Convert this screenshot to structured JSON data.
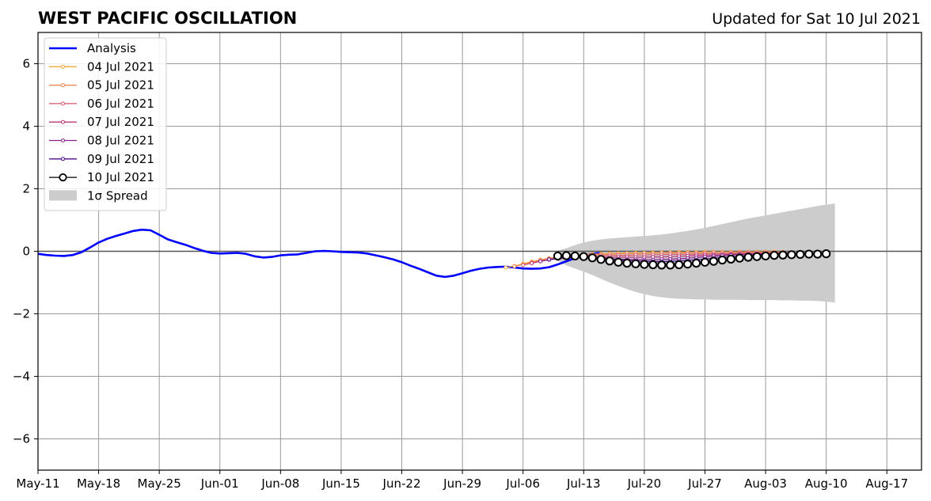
{
  "colors": {
    "analysis": "#0000ff",
    "spread": "#cccccc",
    "grid": "#999999",
    "zero_line": "#555555",
    "forecasts": {
      "04 Jul 2021": "#f6a93b",
      "05 Jul 2021": "#ef8249",
      "06 Jul 2021": "#d8566b",
      "07 Jul 2021": "#b73779",
      "08 Jul 2021": "#8a1f8e",
      "09 Jul 2021": "#4b0c8c",
      "10 Jul 2021": "#000000"
    }
  },
  "chart_data": {
    "type": "line",
    "title": "WEST PACIFIC OSCILLATION",
    "subtitle": "Updated for Sat 10 Jul 2021",
    "xlabel": "",
    "ylabel": "",
    "xlim": [
      "2021-05-11",
      "2021-08-21"
    ],
    "ylim": [
      -7,
      7
    ],
    "y_ticks": [
      -6,
      -4,
      -2,
      0,
      2,
      4,
      6
    ],
    "y_tick_labels": [
      "−6",
      "−4",
      "−2",
      "0",
      "2",
      "4",
      "6"
    ],
    "x_ticks": [
      {
        "date": "2021-05-11",
        "label": "May-11"
      },
      {
        "date": "2021-05-18",
        "label": "May-18"
      },
      {
        "date": "2021-05-25",
        "label": "May-25"
      },
      {
        "date": "2021-06-01",
        "label": "Jun-01"
      },
      {
        "date": "2021-06-08",
        "label": "Jun-08"
      },
      {
        "date": "2021-06-15",
        "label": "Jun-15"
      },
      {
        "date": "2021-06-22",
        "label": "Jun-22"
      },
      {
        "date": "2021-06-29",
        "label": "Jun-29"
      },
      {
        "date": "2021-07-06",
        "label": "Jul-06"
      },
      {
        "date": "2021-07-13",
        "label": "Jul-13"
      },
      {
        "date": "2021-07-20",
        "label": "Jul-20"
      },
      {
        "date": "2021-07-27",
        "label": "Jul-27"
      },
      {
        "date": "2021-08-03",
        "label": "Aug-03"
      },
      {
        "date": "2021-08-10",
        "label": "Aug-10"
      },
      {
        "date": "2021-08-17",
        "label": "Aug-17"
      }
    ],
    "grid": true,
    "legend_position": "top-left",
    "legend": [
      "Analysis",
      "04 Jul 2021",
      "05 Jul 2021",
      "06 Jul 2021",
      "07 Jul 2021",
      "08 Jul 2021",
      "09 Jul 2021",
      "10 Jul 2021",
      "1σ Spread"
    ],
    "analysis": {
      "name": "Analysis",
      "start_date": "2021-05-11",
      "values": [
        -0.08,
        -0.12,
        -0.14,
        -0.15,
        -0.12,
        -0.03,
        0.12,
        0.28,
        0.4,
        0.49,
        0.57,
        0.65,
        0.69,
        0.67,
        0.53,
        0.38,
        0.29,
        0.21,
        0.11,
        0.02,
        -0.05,
        -0.07,
        -0.06,
        -0.05,
        -0.08,
        -0.16,
        -0.2,
        -0.18,
        -0.13,
        -0.11,
        -0.1,
        -0.05,
        0.0,
        0.01,
        0.0,
        -0.02,
        -0.03,
        -0.04,
        -0.07,
        -0.13,
        -0.19,
        -0.26,
        -0.35,
        -0.46,
        -0.56,
        -0.67,
        -0.78,
        -0.82,
        -0.78,
        -0.7,
        -0.62,
        -0.56,
        -0.52,
        -0.5,
        -0.49,
        -0.52,
        -0.55,
        -0.56,
        -0.55,
        -0.51,
        -0.42,
        -0.32,
        -0.22,
        -0.14,
        -0.08,
        -0.05
      ]
    },
    "forecasts": [
      {
        "name": "04 Jul 2021",
        "start_date": "2021-07-04",
        "values": [
          -0.52,
          -0.47,
          -0.4,
          -0.33,
          -0.27,
          -0.22,
          -0.18,
          -0.15,
          -0.12,
          -0.1,
          -0.09,
          -0.08,
          -0.07,
          -0.06,
          -0.06,
          -0.05,
          -0.05,
          -0.04,
          -0.04,
          -0.04,
          -0.03,
          -0.03,
          -0.03,
          -0.02,
          -0.02,
          -0.02,
          -0.02,
          -0.02,
          -0.02,
          -0.02,
          -0.02,
          -0.01
        ]
      },
      {
        "name": "05 Jul 2021",
        "start_date": "2021-07-05",
        "values": [
          -0.48,
          -0.42,
          -0.35,
          -0.28,
          -0.23,
          -0.19,
          -0.16,
          -0.14,
          -0.12,
          -0.11,
          -0.1,
          -0.09,
          -0.08,
          -0.07,
          -0.07,
          -0.06,
          -0.06,
          -0.05,
          -0.05,
          -0.05,
          -0.04,
          -0.04,
          -0.04,
          -0.03,
          -0.03,
          -0.03,
          -0.03,
          -0.02,
          -0.02,
          -0.02,
          -0.02,
          -0.02
        ]
      },
      {
        "name": "06 Jul 2021",
        "start_date": "2021-07-06",
        "values": [
          -0.44,
          -0.38,
          -0.32,
          -0.26,
          -0.22,
          -0.19,
          -0.17,
          -0.16,
          -0.15,
          -0.14,
          -0.14,
          -0.13,
          -0.13,
          -0.12,
          -0.12,
          -0.11,
          -0.11,
          -0.1,
          -0.1,
          -0.09,
          -0.09,
          -0.08,
          -0.08,
          -0.07,
          -0.07,
          -0.06,
          -0.06,
          -0.06,
          -0.05,
          -0.05,
          -0.05,
          -0.04
        ]
      },
      {
        "name": "07 Jul 2021",
        "start_date": "2021-07-07",
        "values": [
          -0.38,
          -0.32,
          -0.27,
          -0.23,
          -0.21,
          -0.2,
          -0.19,
          -0.19,
          -0.19,
          -0.19,
          -0.19,
          -0.19,
          -0.19,
          -0.19,
          -0.18,
          -0.18,
          -0.17,
          -0.16,
          -0.15,
          -0.14,
          -0.13,
          -0.12,
          -0.11,
          -0.1,
          -0.09,
          -0.08,
          -0.08,
          -0.07,
          -0.07,
          -0.06,
          -0.06,
          -0.05
        ]
      },
      {
        "name": "08 Jul 2021",
        "start_date": "2021-07-08",
        "values": [
          -0.32,
          -0.27,
          -0.24,
          -0.22,
          -0.21,
          -0.21,
          -0.22,
          -0.23,
          -0.24,
          -0.25,
          -0.26,
          -0.26,
          -0.27,
          -0.27,
          -0.26,
          -0.25,
          -0.24,
          -0.22,
          -0.2,
          -0.18,
          -0.16,
          -0.14,
          -0.12,
          -0.11,
          -0.1,
          -0.09,
          -0.08,
          -0.07,
          -0.06,
          -0.06,
          -0.05,
          -0.05
        ]
      },
      {
        "name": "09 Jul 2021",
        "start_date": "2021-07-09",
        "values": [
          -0.26,
          -0.22,
          -0.2,
          -0.19,
          -0.19,
          -0.2,
          -0.22,
          -0.24,
          -0.27,
          -0.29,
          -0.31,
          -0.32,
          -0.33,
          -0.33,
          -0.32,
          -0.31,
          -0.29,
          -0.27,
          -0.25,
          -0.22,
          -0.2,
          -0.18,
          -0.16,
          -0.14,
          -0.12,
          -0.11,
          -0.1,
          -0.09,
          -0.08,
          -0.07,
          -0.07,
          -0.06
        ]
      },
      {
        "name": "10 Jul 2021",
        "start_date": "2021-07-10",
        "values": [
          -0.15,
          -0.14,
          -0.15,
          -0.17,
          -0.21,
          -0.26,
          -0.31,
          -0.35,
          -0.38,
          -0.4,
          -0.42,
          -0.43,
          -0.44,
          -0.44,
          -0.43,
          -0.41,
          -0.38,
          -0.35,
          -0.32,
          -0.28,
          -0.25,
          -0.22,
          -0.19,
          -0.17,
          -0.15,
          -0.13,
          -0.12,
          -0.11,
          -0.1,
          -0.09,
          -0.09,
          -0.08
        ]
      }
    ],
    "spread": {
      "name": "1σ Spread",
      "start_date": "2021-07-10",
      "upper": [
        0.02,
        0.1,
        0.2,
        0.28,
        0.34,
        0.38,
        0.41,
        0.43,
        0.45,
        0.47,
        0.49,
        0.51,
        0.54,
        0.57,
        0.61,
        0.65,
        0.7,
        0.75,
        0.81,
        0.87,
        0.93,
        0.99,
        1.05,
        1.1,
        1.15,
        1.2,
        1.25,
        1.3,
        1.35,
        1.4,
        1.45,
        1.49,
        1.53
      ],
      "lower": [
        -0.3,
        -0.45,
        -0.55,
        -0.65,
        -0.76,
        -0.88,
        -1.0,
        -1.11,
        -1.21,
        -1.3,
        -1.37,
        -1.43,
        -1.47,
        -1.5,
        -1.52,
        -1.53,
        -1.54,
        -1.54,
        -1.55,
        -1.55,
        -1.55,
        -1.55,
        -1.56,
        -1.56,
        -1.56,
        -1.56,
        -1.57,
        -1.57,
        -1.58,
        -1.58,
        -1.59,
        -1.61,
        -1.64
      ]
    }
  }
}
